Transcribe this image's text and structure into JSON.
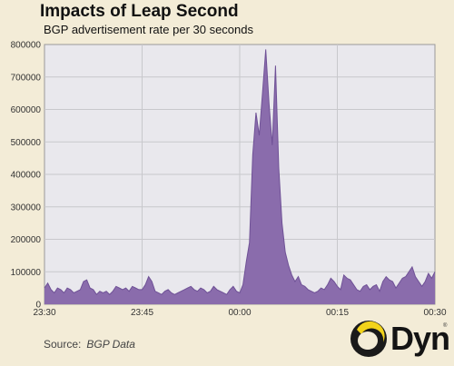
{
  "chart_data": {
    "type": "area",
    "title": "Impacts of Leap Second",
    "subtitle": "BGP advertisement rate per 30 seconds",
    "source_label": "Source:",
    "source": "BGP Data",
    "x_tick_labels": [
      "23:30",
      "23:45",
      "00:00",
      "00:15",
      "00:30"
    ],
    "y_tick_labels": [
      "0",
      "100000",
      "200000",
      "300000",
      "400000",
      "500000",
      "600000",
      "700000",
      "800000"
    ],
    "ylim": [
      0,
      800000
    ],
    "xlim": [
      0,
      60
    ],
    "grid": true,
    "series": [
      {
        "color": "#8a6cac",
        "x": [
          0,
          0.5,
          1,
          1.5,
          2,
          2.5,
          3,
          3.5,
          4,
          4.5,
          5,
          5.5,
          6,
          6.5,
          7,
          7.5,
          8,
          8.5,
          9,
          9.5,
          10,
          10.5,
          11,
          11.5,
          12,
          12.5,
          13,
          13.5,
          14,
          14.5,
          15,
          15.5,
          16,
          16.5,
          17,
          17.5,
          18,
          18.5,
          19,
          19.5,
          20,
          20.5,
          21,
          21.5,
          22,
          22.5,
          23,
          23.5,
          24,
          24.5,
          25,
          25.5,
          26,
          26.5,
          27,
          27.5,
          28,
          28.5,
          29,
          29.5,
          30,
          30.5,
          31,
          31.5,
          32,
          32.5,
          33,
          33.5,
          34,
          34.5,
          35,
          35.5,
          36,
          36.5,
          37,
          37.5,
          38,
          38.5,
          39,
          39.5,
          40,
          40.5,
          41,
          41.5,
          42,
          42.5,
          43,
          43.5,
          44,
          44.5,
          45,
          45.5,
          46,
          46.5,
          47,
          47.5,
          48,
          48.5,
          49,
          49.5,
          50,
          50.5,
          51,
          51.5,
          52,
          52.5,
          53,
          53.5,
          54,
          54.5,
          55,
          55.5,
          56,
          56.5,
          57,
          57.5,
          58,
          58.5,
          59,
          59.5,
          60
        ],
        "values": [
          50000,
          65000,
          45000,
          35000,
          50000,
          45000,
          35000,
          50000,
          45000,
          35000,
          40000,
          45000,
          70000,
          75000,
          50000,
          45000,
          30000,
          40000,
          35000,
          40000,
          30000,
          40000,
          55000,
          50000,
          45000,
          50000,
          40000,
          55000,
          50000,
          45000,
          45000,
          60000,
          85000,
          70000,
          40000,
          35000,
          30000,
          40000,
          45000,
          35000,
          30000,
          35000,
          40000,
          45000,
          50000,
          55000,
          45000,
          40000,
          50000,
          45000,
          35000,
          40000,
          55000,
          45000,
          40000,
          35000,
          30000,
          45000,
          55000,
          40000,
          35000,
          60000,
          130000,
          190000,
          460000,
          590000,
          520000,
          650000,
          785000,
          620000,
          490000,
          735000,
          420000,
          250000,
          160000,
          120000,
          90000,
          70000,
          85000,
          60000,
          55000,
          45000,
          40000,
          35000,
          40000,
          50000,
          45000,
          60000,
          80000,
          70000,
          55000,
          45000,
          90000,
          80000,
          75000,
          60000,
          45000,
          40000,
          55000,
          60000,
          45000,
          55000,
          60000,
          40000,
          70000,
          85000,
          75000,
          70000,
          50000,
          65000,
          80000,
          85000,
          100000,
          115000,
          85000,
          70000,
          55000,
          70000,
          95000,
          80000,
          100000
        ]
      }
    ]
  },
  "logo": {
    "text": "Dyn",
    "tm": "®"
  }
}
